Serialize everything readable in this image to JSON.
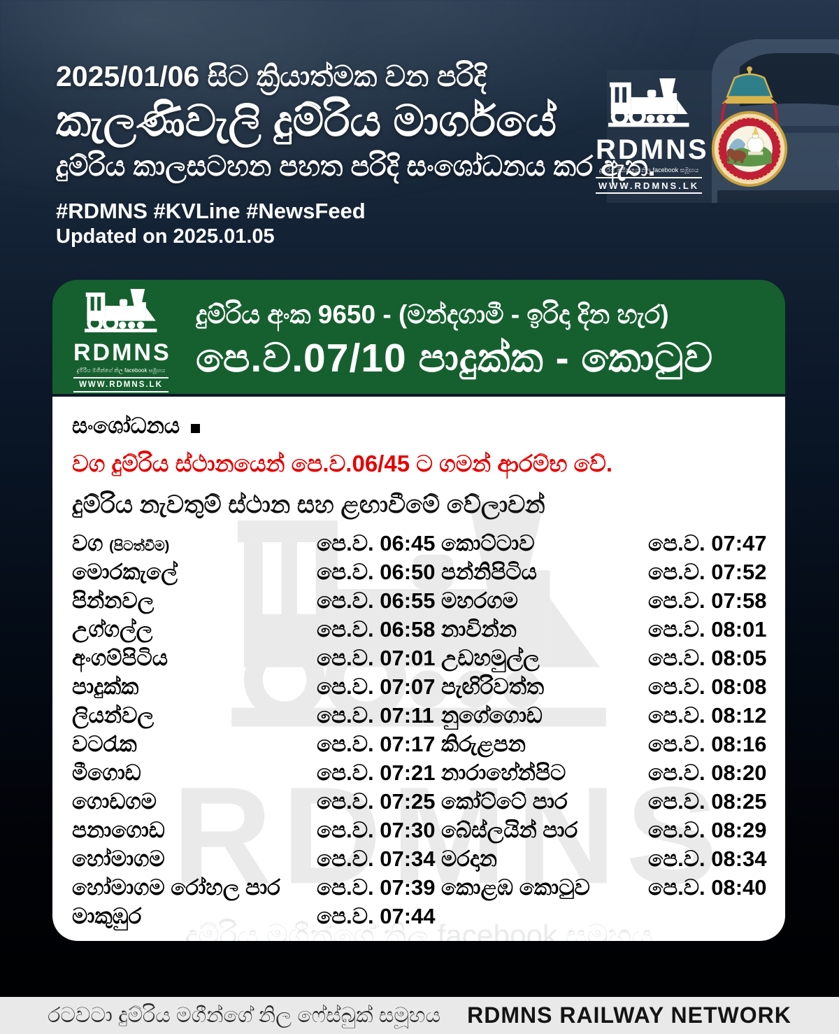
{
  "header": {
    "line1": "2025/01/06 සිට ක්‍රියාත්මක වන පරිදි",
    "line2": "කැලණිවැලි දුම්රිය මාර්ගයේ",
    "line3": "දුම්රිය කාලසටහන පහත පරිදි සංශෝධනය කර ඇත.",
    "hashtags": "#RDMNS  #KVLine #NewsFeed",
    "updated": "Updated on 2025.01.05"
  },
  "rdmns_logo": {
    "name": "RDMNS",
    "tagline": "දුම්රිය මගීන්ගේ නිල facebook සමූහය",
    "website": "WWW.RDMNS.LK"
  },
  "icons": {
    "train_logo": "rdmns-steam-train-icon",
    "emblem": "sri-lanka-railway-emblem"
  },
  "train_card": {
    "line1": "දුම්රිය අංක 9650 - (මන්දගාමී - ඉරිදා දින හැර)",
    "line2": "පෙ.ව.07/10 පාදුක්ක - කොටුව"
  },
  "notice": {
    "heading": "සංශෝධනය",
    "alert": "වග දුම්රිය ස්ථානයෙන් පෙ.ව.06/45 ට ගමන් ආරම්භ වේ.",
    "subheading": "දුම්රිය නැවතුම් ස්ථාන සහ ළඟාවීමේ වේලාවන්"
  },
  "timetable": {
    "left": [
      {
        "station": "වග",
        "note": "(පිටත්වීම)",
        "time": "පෙ.ව. 06:45"
      },
      {
        "station": "මොරකැලේ",
        "time": "පෙ.ව. 06:50"
      },
      {
        "station": "පින්නවල",
        "time": "පෙ.ව. 06:55"
      },
      {
        "station": "උග්ගල්ල",
        "time": "පෙ.ව. 06:58"
      },
      {
        "station": "අංගම්පිටිය",
        "time": "පෙ.ව. 07:01"
      },
      {
        "station": "පාදුක්ක",
        "time": "පෙ.ව. 07:07"
      },
      {
        "station": "ලියන්වල",
        "time": "පෙ.ව. 07:11"
      },
      {
        "station": "වටරැක",
        "time": "පෙ.ව. 07:17"
      },
      {
        "station": "මීගොඩ",
        "time": "පෙ.ව. 07:21"
      },
      {
        "station": "ගොඩගම",
        "time": "පෙ.ව. 07:25"
      },
      {
        "station": "පනාගොඩ",
        "time": "පෙ.ව. 07:30"
      },
      {
        "station": "හෝමාගම",
        "time": "පෙ.ව. 07:34"
      },
      {
        "station": "හෝමාගම රෝහල පාර",
        "time": "පෙ.ව. 07:39"
      },
      {
        "station": "මාකුඹුර",
        "time": "පෙ.ව. 07:44"
      }
    ],
    "right": [
      {
        "station": "කොට්ටාව",
        "time": "පෙ.ව. 07:47"
      },
      {
        "station": "පන්නිපිටිය",
        "time": "පෙ.ව. 07:52"
      },
      {
        "station": "මහරගම",
        "time": "පෙ.ව. 07:58"
      },
      {
        "station": "නාවින්න",
        "time": "පෙ.ව. 08:01"
      },
      {
        "station": "උඩහමුල්ල",
        "time": "පෙ.ව. 08:05"
      },
      {
        "station": "පැඟිරිවත්ත",
        "time": "පෙ.ව. 08:08"
      },
      {
        "station": "නුගේගොඩ",
        "time": "පෙ.ව. 08:12"
      },
      {
        "station": "කිරුළපන",
        "time": "පෙ.ව. 08:16"
      },
      {
        "station": "නාරාහේන්පිට",
        "time": "පෙ.ව. 08:20"
      },
      {
        "station": "කෝට්ටේ පාර",
        "time": "පෙ.ව. 08:25"
      },
      {
        "station": "බේස්ලයින් පාර",
        "time": "පෙ.ව. 08:29"
      },
      {
        "station": "මරදාන",
        "time": "පෙ.ව. 08:34"
      },
      {
        "station": "කොළඹ කොටුව",
        "time": "පෙ.ව. 08:40"
      }
    ]
  },
  "footer": {
    "sinhala": "රටවටා දුම්රිය මගීන්ගේ නිල ෆේස්බුක් සමූහය",
    "english": "RDMNS RAILWAY NETWORK"
  },
  "colors": {
    "green": "#16602f",
    "red": "#e60000",
    "navy_top": "#26374d",
    "footer_bg": "#e9e9e9"
  }
}
